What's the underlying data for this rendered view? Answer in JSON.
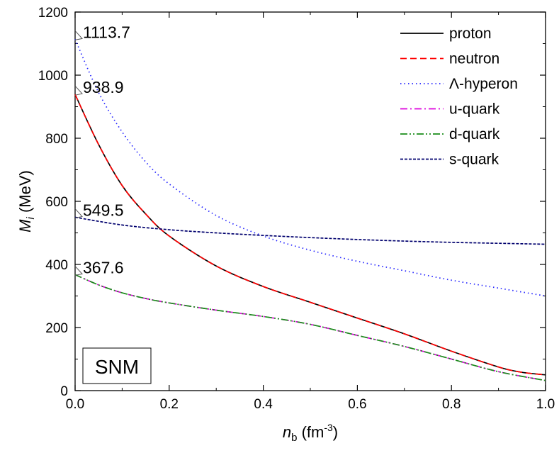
{
  "chart_data": {
    "type": "line",
    "xlabel": {
      "main": "n",
      "sub": "b",
      "unit_pre": " (fm",
      "unit_sup": "-3",
      "unit_post": ")"
    },
    "ylabel": {
      "main": "M",
      "sub": "i",
      "unit": " (MeV)"
    },
    "xlim": [
      0,
      1.0
    ],
    "ylim": [
      0,
      1200
    ],
    "xticks": [
      "0.0",
      "0.2",
      "0.4",
      "0.6",
      "0.8",
      "1.0"
    ],
    "yticks": [
      "0",
      "200",
      "400",
      "600",
      "800",
      "1000",
      "1200"
    ],
    "legend_position": "top-right",
    "box_label": "SNM",
    "annotations": [
      {
        "text": "1113.7",
        "y": 1113.7
      },
      {
        "text": "938.9",
        "y": 938.9
      },
      {
        "text": "549.5",
        "y": 549.5
      },
      {
        "text": "367.6",
        "y": 367.6
      }
    ],
    "series": [
      {
        "name": "proton",
        "color": "#000000",
        "dash": "solid",
        "x": [
          0.0,
          0.05,
          0.1,
          0.15,
          0.2,
          0.3,
          0.4,
          0.5,
          0.6,
          0.7,
          0.8,
          0.9,
          0.95,
          1.0
        ],
        "values": [
          938.9,
          780,
          650,
          560,
          490,
          395,
          330,
          280,
          230,
          180,
          125,
          75,
          58,
          50
        ]
      },
      {
        "name": "neutron",
        "color": "#ff0000",
        "dash": "dashed",
        "x": [
          0.0,
          0.05,
          0.1,
          0.15,
          0.2,
          0.3,
          0.4,
          0.5,
          0.6,
          0.7,
          0.8,
          0.9,
          0.95,
          1.0
        ],
        "values": [
          938.9,
          780,
          650,
          560,
          490,
          395,
          330,
          280,
          230,
          180,
          125,
          75,
          58,
          50
        ]
      },
      {
        "name": "Λ-hyperon",
        "color": "#2222ff",
        "dash": "dotted",
        "x": [
          0.0,
          0.05,
          0.1,
          0.15,
          0.2,
          0.3,
          0.4,
          0.5,
          0.6,
          0.7,
          0.8,
          0.9,
          1.0
        ],
        "values": [
          1113.7,
          945,
          820,
          725,
          655,
          555,
          490,
          445,
          410,
          380,
          350,
          325,
          300
        ]
      },
      {
        "name": "u-quark",
        "color": "#dd00dd",
        "dash": "dashdot",
        "x": [
          0.0,
          0.05,
          0.1,
          0.15,
          0.2,
          0.3,
          0.4,
          0.5,
          0.6,
          0.7,
          0.8,
          0.9,
          1.0
        ],
        "values": [
          367.6,
          335,
          310,
          292,
          278,
          255,
          235,
          210,
          175,
          140,
          100,
          60,
          32
        ]
      },
      {
        "name": "d-quark",
        "color": "#1a8c1a",
        "dash": "dashdotdot",
        "x": [
          0.0,
          0.05,
          0.1,
          0.15,
          0.2,
          0.3,
          0.4,
          0.5,
          0.6,
          0.7,
          0.8,
          0.9,
          1.0
        ],
        "values": [
          367.6,
          335,
          310,
          292,
          278,
          255,
          235,
          210,
          175,
          140,
          100,
          60,
          32
        ]
      },
      {
        "name": "s-quark",
        "color": "#00006e",
        "dash": "shortdash",
        "x": [
          0.0,
          0.1,
          0.2,
          0.3,
          0.4,
          0.5,
          0.6,
          0.7,
          0.8,
          0.9,
          1.0
        ],
        "values": [
          549.5,
          525,
          510,
          500,
          492,
          485,
          479,
          474,
          470,
          467,
          464
        ]
      }
    ]
  }
}
